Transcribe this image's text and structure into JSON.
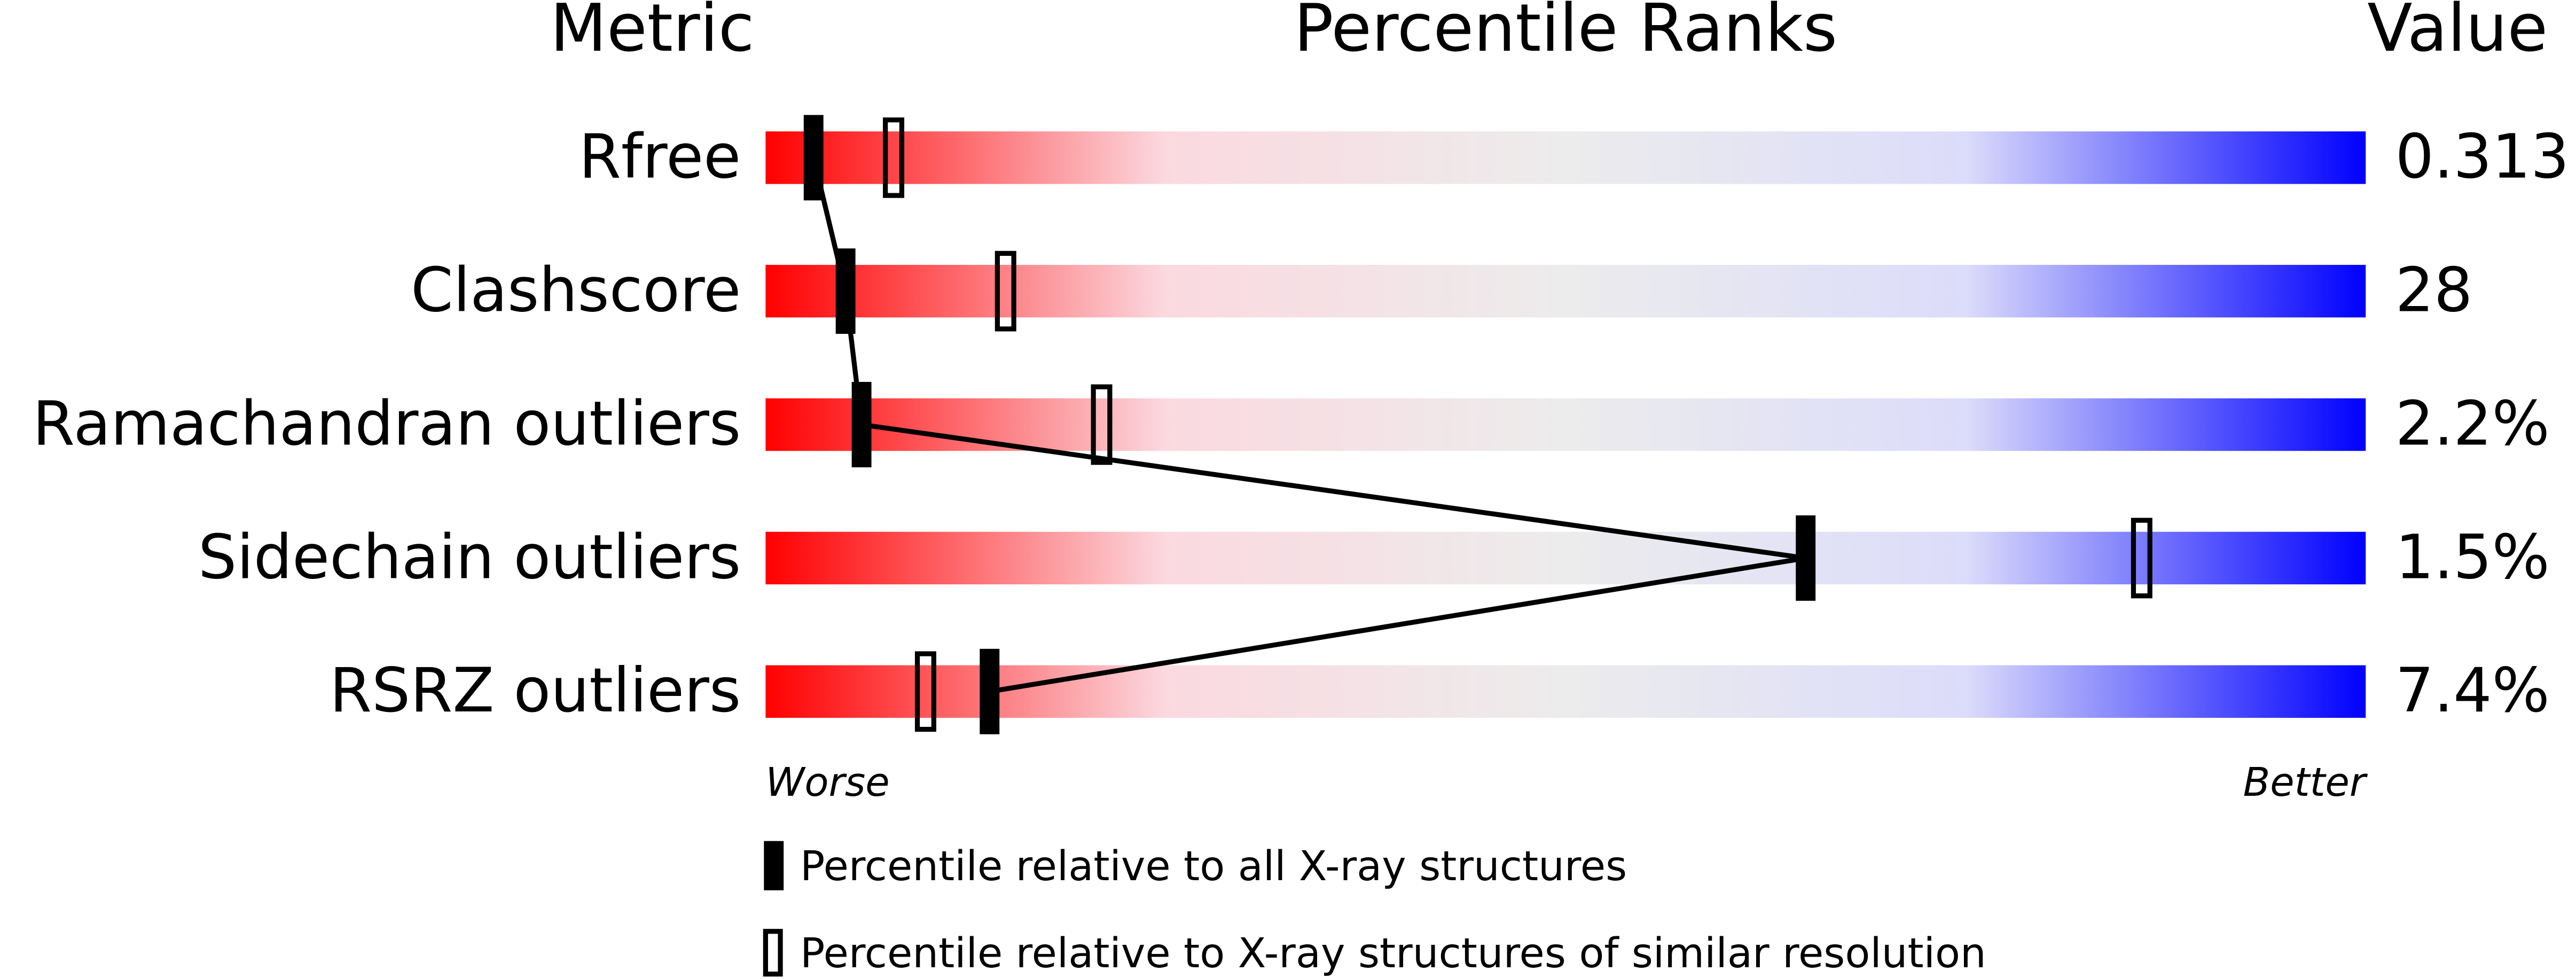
{
  "chart_data": {
    "type": "percentile-slider",
    "column_headers": [
      "Metric",
      "Percentile Ranks",
      "Value"
    ],
    "categories": [
      "Rfree",
      "Clashscore",
      "Ramachandran outliers",
      "Sidechain outliers",
      "RSRZ outliers"
    ],
    "metric_values": [
      "0.313",
      "28",
      "2.2%",
      "1.5%",
      "7.4%"
    ],
    "xlim": [
      0,
      100
    ],
    "scale_labels": [
      "Worse",
      "Better"
    ],
    "gradient_colors": [
      "#ff0000",
      "#fbd9e0",
      "#ececec",
      "#dcdcfb",
      "#0000ff"
    ],
    "series": [
      {
        "name": "Percentile relative to all X-ray structures",
        "color": "#000000",
        "marker": "filled",
        "values": [
          3,
          5,
          6,
          65,
          14
        ]
      },
      {
        "name": "Percentile relative to X-ray structures of similar resolution",
        "color": "#000000",
        "marker": "outline",
        "values": [
          8,
          15,
          21,
          86,
          10
        ]
      }
    ]
  }
}
